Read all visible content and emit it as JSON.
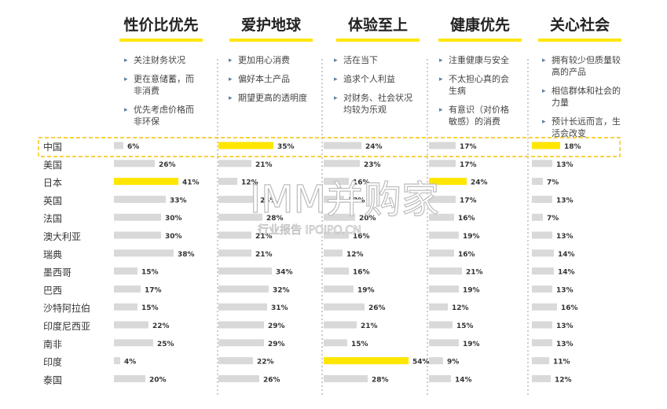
{
  "chart_data": {
    "type": "bar",
    "columns": [
      {
        "title": "性价比优先",
        "bullets": [
          [
            "关注财务状况"
          ],
          [
            "更在意储蓄，而",
            "非消费"
          ],
          [
            "优先考虑价格而",
            "非环保"
          ]
        ]
      },
      {
        "title": "爱护地球",
        "bullets": [
          [
            "更加用心消费"
          ],
          [
            "偏好本土产品"
          ],
          [
            "期望更高的透明度"
          ]
        ]
      },
      {
        "title": "体验至上",
        "bullets": [
          [
            "活在当下"
          ],
          [
            "追求个人利益"
          ],
          [
            "对财务、社会状况",
            "均较为乐观"
          ]
        ]
      },
      {
        "title": "健康优先",
        "bullets": [
          [
            "注重健康与安全"
          ],
          [
            "不太担心真的会",
            "生病"
          ],
          [
            "有意识（对价格",
            "敏感）的消费"
          ]
        ]
      },
      {
        "title": "关心社会",
        "bullets": [
          [
            "拥有较少但质量较",
            "高的产品"
          ],
          [
            "相信群体和社会的",
            "力量"
          ],
          [
            "预计长远而言，生",
            "活会改变"
          ]
        ]
      }
    ],
    "categories": [
      "中国",
      "美国",
      "日本",
      "英国",
      "法国",
      "澳大利亚",
      "瑞典",
      "墨西哥",
      "巴西",
      "沙特阿拉伯",
      "印度尼西亚",
      "南非",
      "印度",
      "泰国"
    ],
    "series": [
      {
        "name": "性价比优先",
        "values": [
          6,
          26,
          41,
          33,
          30,
          30,
          38,
          15,
          17,
          15,
          22,
          25,
          4,
          20
        ]
      },
      {
        "name": "爱护地球",
        "values": [
          35,
          21,
          12,
          24,
          28,
          21,
          21,
          34,
          32,
          31,
          29,
          29,
          22,
          26
        ]
      },
      {
        "name": "体验至上",
        "values": [
          24,
          23,
          16,
          13,
          20,
          16,
          12,
          16,
          19,
          26,
          21,
          15,
          54,
          28
        ]
      },
      {
        "name": "健康优先",
        "values": [
          17,
          17,
          24,
          17,
          16,
          19,
          16,
          21,
          19,
          12,
          15,
          19,
          9,
          14
        ]
      },
      {
        "name": "关心社会",
        "values": [
          18,
          13,
          7,
          13,
          7,
          13,
          14,
          14,
          13,
          16,
          13,
          13,
          11,
          12
        ]
      }
    ],
    "highlighted": {
      "中国": [
        1,
        4
      ],
      "日本": [
        0,
        3
      ],
      "印度": [
        2
      ]
    },
    "highlight_row": "中国",
    "value_suffix": "%",
    "colors": {
      "highlight": "#ffe600",
      "bar": "#d9d9d9",
      "title_underline": "#ffe600",
      "divider": "#999999",
      "highlight_box": "#f5c400"
    }
  },
  "watermark": {
    "main": "IMM并购家",
    "sub": "行业报告 IPOIPO.CN"
  }
}
